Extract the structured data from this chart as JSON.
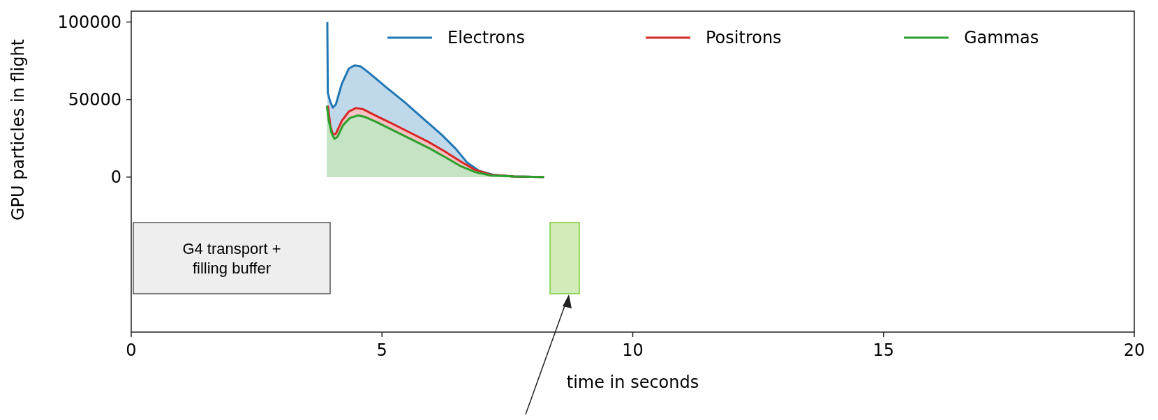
{
  "chart_data": {
    "type": "area",
    "xlabel": "time in seconds",
    "ylabel": "GPU particles in flight",
    "xlim": [
      0,
      20
    ],
    "xticks": [
      0,
      5,
      10,
      15,
      20
    ],
    "ylim": [
      -100000,
      107000
    ],
    "yticks": [
      0,
      50000,
      100000
    ],
    "grid": false,
    "legend": "top right",
    "marker": "none",
    "line_style": "solid",
    "annotations": [
      "G4 transport + filling buffer"
    ],
    "series": [
      {
        "name": "Electrons",
        "color": "#1f77b4",
        "x": [
          3.91,
          3.92,
          3.97,
          4.02,
          4.08,
          4.2,
          4.34,
          4.45,
          4.57,
          4.75,
          5.08,
          5.45,
          5.82,
          6.19,
          6.47,
          6.7,
          6.94,
          7.21,
          7.63,
          8.23
        ],
        "values": [
          100000,
          54300,
          48300,
          44800,
          46800,
          60300,
          70000,
          72000,
          71500,
          67000,
          58000,
          48300,
          37800,
          27300,
          18300,
          9300,
          4000,
          1500,
          300,
          0
        ]
      },
      {
        "name": "Positrons",
        "color": "#d62728",
        "x": [
          3.92,
          3.97,
          4.02,
          4.08,
          4.2,
          4.34,
          4.48,
          4.62,
          4.85,
          5.18,
          5.55,
          5.92,
          6.24,
          6.57,
          6.85,
          7.17,
          7.63,
          8.23
        ],
        "values": [
          46000,
          33300,
          27300,
          28000,
          36300,
          42300,
          44500,
          43800,
          40000,
          34800,
          28800,
          22800,
          16800,
          10000,
          4800,
          1500,
          300,
          0
        ]
      },
      {
        "name": "Gammas",
        "color": "#2ca02c",
        "x": [
          3.9,
          3.94,
          3.99,
          4.05,
          4.11,
          4.22,
          4.36,
          4.52,
          4.66,
          4.89,
          5.21,
          5.59,
          5.96,
          6.29,
          6.57,
          6.85,
          7.17,
          7.63,
          8.23
        ],
        "values": [
          46000,
          36300,
          28800,
          24700,
          25800,
          33300,
          38100,
          39700,
          38800,
          35500,
          30300,
          24300,
          18300,
          12300,
          7000,
          3300,
          1000,
          300,
          0
        ]
      }
    ]
  }
}
